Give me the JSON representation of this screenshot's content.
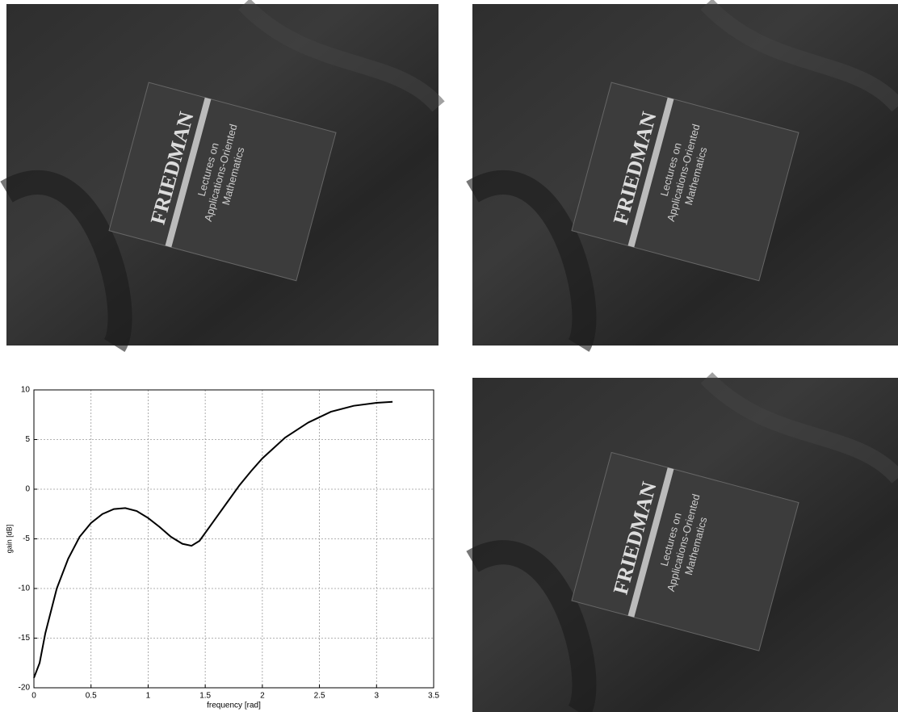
{
  "photos": [
    {
      "title": "FRIEDMAN",
      "subtitle": [
        "Lectures on",
        "Applications-Oriented",
        "Mathematics"
      ]
    },
    {
      "title": "FRIEDMAN",
      "subtitle": [
        "Lectures on",
        "Applications-Oriented",
        "Mathematics"
      ]
    },
    {
      "title": "FRIEDMAN",
      "subtitle": [
        "Lectures on",
        "Applications-Oriented",
        "Mathematics"
      ]
    }
  ],
  "chart_data": {
    "type": "line",
    "xlabel": "frequency [rad]",
    "ylabel": "gain [dB]",
    "x": [
      0,
      0.05,
      0.1,
      0.2,
      0.3,
      0.4,
      0.5,
      0.6,
      0.7,
      0.8,
      0.9,
      1.0,
      1.1,
      1.2,
      1.3,
      1.38,
      1.45,
      1.5,
      1.6,
      1.7,
      1.8,
      1.9,
      2.0,
      2.2,
      2.4,
      2.6,
      2.8,
      3.0,
      3.14
    ],
    "series": [
      {
        "color": "#000000",
        "values": [
          -19,
          -17.5,
          -14.5,
          -10,
          -7,
          -4.8,
          -3.4,
          -2.5,
          -2,
          -1.9,
          -2.2,
          -2.9,
          -3.8,
          -4.8,
          -5.5,
          -5.7,
          -5.2,
          -4.4,
          -2.8,
          -1.2,
          0.4,
          1.8,
          3.1,
          5.2,
          6.7,
          7.8,
          8.4,
          8.7,
          8.8
        ]
      }
    ],
    "xlim": [
      0,
      3.5
    ],
    "xticks": [
      0,
      0.5,
      1,
      1.5,
      2,
      2.5,
      3,
      3.5
    ],
    "ylim": [
      -20,
      10
    ],
    "yticks": [
      -20,
      -15,
      -10,
      -5,
      0,
      5,
      10
    ],
    "grid": true
  }
}
